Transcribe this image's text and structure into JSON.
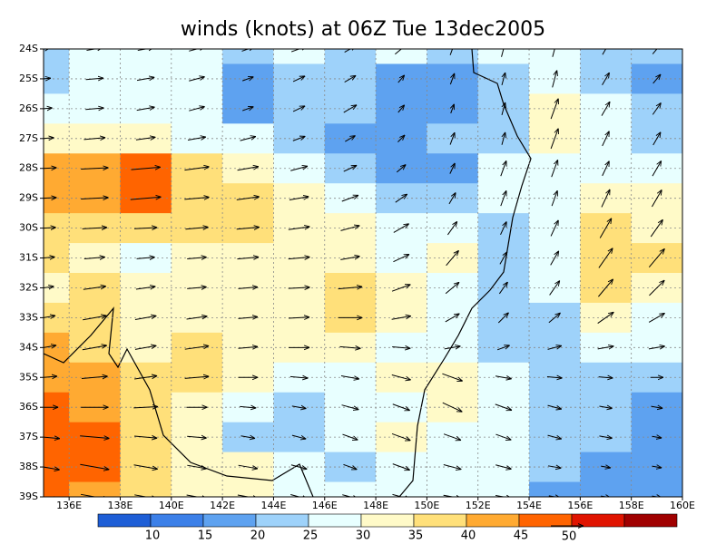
{
  "chart_data": {
    "type": "wind-map",
    "title": "winds (knots) at 06Z Tue 13dec2005",
    "xlim": [
      135,
      160
    ],
    "ylim": [
      -39,
      -24
    ],
    "xticks": [
      {
        "value": 136,
        "label": "136E"
      },
      {
        "value": 138,
        "label": "138E"
      },
      {
        "value": 140,
        "label": "140E"
      },
      {
        "value": 142,
        "label": "142E"
      },
      {
        "value": 144,
        "label": "144E"
      },
      {
        "value": 146,
        "label": "146E"
      },
      {
        "value": 148,
        "label": "148E"
      },
      {
        "value": 150,
        "label": "150E"
      },
      {
        "value": 152,
        "label": "152E"
      },
      {
        "value": 154,
        "label": "154E"
      },
      {
        "value": 156,
        "label": "156E"
      },
      {
        "value": 158,
        "label": "158E"
      },
      {
        "value": 160,
        "label": "160E"
      }
    ],
    "yticks": [
      {
        "value": -24,
        "label": "24S"
      },
      {
        "value": -25,
        "label": "25S"
      },
      {
        "value": -26,
        "label": "26S"
      },
      {
        "value": -27,
        "label": "27S"
      },
      {
        "value": -28,
        "label": "28S"
      },
      {
        "value": -29,
        "label": "29S"
      },
      {
        "value": -30,
        "label": "30S"
      },
      {
        "value": -31,
        "label": "31S"
      },
      {
        "value": -32,
        "label": "32S"
      },
      {
        "value": -33,
        "label": "33S"
      },
      {
        "value": -34,
        "label": "34S"
      },
      {
        "value": -35,
        "label": "35S"
      },
      {
        "value": -36,
        "label": "36S"
      },
      {
        "value": -37,
        "label": "37S"
      },
      {
        "value": -38,
        "label": "38S"
      },
      {
        "value": -39,
        "label": "39S"
      }
    ],
    "grid": true,
    "levels": [
      10,
      15,
      20,
      25,
      30,
      35,
      40,
      45
    ],
    "colors": [
      "#1e5ed6",
      "#3c80e8",
      "#5ea2f0",
      "#9ed2fa",
      "#e8ffff",
      "#fffac8",
      "#ffe07a",
      "#ffaa32",
      "#ff6400",
      "#e01400",
      "#a00000"
    ],
    "lons": [
      135,
      137,
      139,
      141,
      143,
      145,
      147,
      149,
      151,
      153,
      155,
      157,
      159
    ],
    "lats": [
      -24,
      -25,
      -26,
      -27,
      -28,
      -29,
      -30,
      -31,
      -32,
      -33,
      -34,
      -35,
      -36,
      -37,
      -38,
      -39
    ],
    "speed": [
      [
        20,
        25,
        25,
        25,
        20,
        25,
        20,
        25,
        20,
        25,
        25,
        20,
        20
      ],
      [
        22,
        27,
        27,
        25,
        18,
        20,
        20,
        15,
        18,
        20,
        27,
        22,
        18
      ],
      [
        27,
        28,
        28,
        25,
        18,
        20,
        23,
        15,
        15,
        20,
        33,
        25,
        22
      ],
      [
        32,
        33,
        30,
        28,
        25,
        20,
        18,
        15,
        20,
        20,
        33,
        25,
        23
      ],
      [
        40,
        42,
        45,
        38,
        33,
        27,
        22,
        18,
        18,
        25,
        28,
        25,
        27
      ],
      [
        40,
        42,
        47,
        38,
        35,
        30,
        27,
        22,
        20,
        25,
        25,
        30,
        30
      ],
      [
        38,
        38,
        35,
        35,
        35,
        33,
        30,
        27,
        25,
        22,
        27,
        35,
        32
      ],
      [
        35,
        32,
        28,
        30,
        33,
        33,
        30,
        27,
        30,
        22,
        25,
        37,
        37
      ],
      [
        32,
        35,
        30,
        30,
        30,
        33,
        37,
        30,
        27,
        22,
        27,
        35,
        33
      ],
      [
        37,
        37,
        33,
        32,
        30,
        32,
        37,
        30,
        25,
        22,
        23,
        30,
        28
      ],
      [
        40,
        38,
        33,
        37,
        30,
        32,
        32,
        28,
        25,
        20,
        22,
        25,
        25
      ],
      [
        42,
        40,
        35,
        37,
        30,
        27,
        28,
        30,
        33,
        25,
        23,
        22,
        20
      ],
      [
        45,
        42,
        37,
        32,
        25,
        22,
        27,
        28,
        33,
        27,
        22,
        20,
        18
      ],
      [
        50,
        45,
        35,
        30,
        22,
        22,
        25,
        30,
        28,
        25,
        22,
        20,
        15
      ],
      [
        50,
        45,
        37,
        30,
        30,
        25,
        22,
        28,
        28,
        25,
        20,
        15,
        15
      ],
      [
        48,
        43,
        35,
        32,
        32,
        27,
        25,
        28,
        28,
        25,
        18,
        15,
        15
      ]
    ],
    "direction": [
      [
        10,
        10,
        10,
        15,
        20,
        20,
        30,
        40,
        70,
        75,
        75,
        60,
        50
      ],
      [
        5,
        5,
        10,
        15,
        20,
        25,
        30,
        50,
        70,
        75,
        75,
        60,
        50
      ],
      [
        5,
        5,
        10,
        15,
        20,
        25,
        30,
        50,
        70,
        75,
        70,
        60,
        55
      ],
      [
        5,
        5,
        8,
        10,
        15,
        20,
        30,
        45,
        70,
        75,
        70,
        65,
        60
      ],
      [
        3,
        3,
        5,
        8,
        10,
        15,
        25,
        40,
        65,
        70,
        70,
        65,
        60
      ],
      [
        3,
        3,
        5,
        5,
        8,
        10,
        20,
        35,
        60,
        70,
        70,
        65,
        60
      ],
      [
        3,
        3,
        3,
        5,
        5,
        8,
        15,
        30,
        55,
        65,
        65,
        60,
        55
      ],
      [
        5,
        5,
        5,
        5,
        5,
        5,
        10,
        25,
        50,
        60,
        60,
        55,
        50
      ],
      [
        8,
        8,
        8,
        5,
        5,
        3,
        5,
        20,
        40,
        55,
        55,
        50,
        45
      ],
      [
        10,
        10,
        10,
        8,
        5,
        3,
        0,
        10,
        30,
        45,
        40,
        35,
        30
      ],
      [
        10,
        10,
        10,
        8,
        5,
        0,
        -5,
        -5,
        10,
        20,
        15,
        10,
        10
      ],
      [
        5,
        5,
        8,
        5,
        0,
        -5,
        -10,
        -15,
        -20,
        -10,
        -5,
        -5,
        0
      ],
      [
        0,
        0,
        3,
        0,
        -5,
        -10,
        -15,
        -20,
        -25,
        -20,
        -15,
        -10,
        -10
      ],
      [
        -5,
        -5,
        -5,
        -5,
        -10,
        -15,
        -20,
        -20,
        -20,
        -20,
        -15,
        -10,
        -10
      ],
      [
        -10,
        -10,
        -10,
        -10,
        -10,
        -15,
        -20,
        -20,
        -15,
        -15,
        -10,
        -10,
        -10
      ],
      [
        -10,
        -10,
        -10,
        -10,
        -10,
        -15,
        -15,
        -15,
        -10,
        -10,
        -10,
        -10,
        -10
      ]
    ],
    "ref_vector": 50
  }
}
